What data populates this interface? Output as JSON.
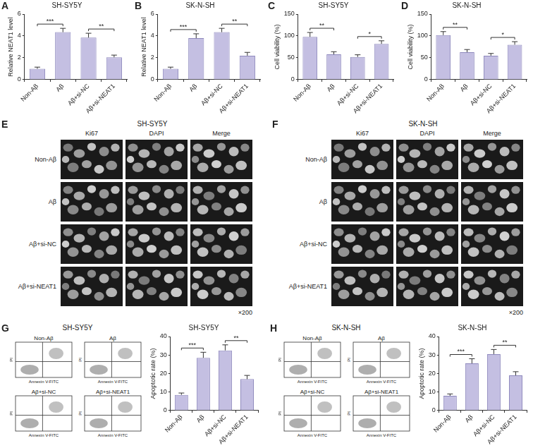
{
  "chart_data": [
    {
      "panel": "A",
      "type": "bar",
      "title": "SH-SY5Y",
      "y_label": "Relative NEAT1 level",
      "categories": [
        "Non-Aβ",
        "Aβ",
        "Aβ+si-NC",
        "Aβ+si-NEAT1"
      ],
      "values": [
        1.0,
        4.35,
        3.85,
        2.05
      ],
      "errors": [
        0.15,
        0.35,
        0.4,
        0.2
      ],
      "significance": [
        {
          "pair": [
            "Non-Aβ",
            "Aβ"
          ],
          "label": "***"
        },
        {
          "pair": [
            "Aβ+si-NC",
            "Aβ+si-NEAT1"
          ],
          "label": "**"
        }
      ],
      "color": "#c4bfe2",
      "ylim": [
        0,
        6
      ],
      "yticks": [
        0,
        2,
        4,
        6
      ],
      "grid": false
    },
    {
      "panel": "B",
      "type": "bar",
      "title": "SK-N-SH",
      "y_label": "Relative NEAT1 level",
      "categories": [
        "Non-Aβ",
        "Aβ",
        "Aβ+si-NC",
        "Aβ+si-NEAT1"
      ],
      "values": [
        1.0,
        3.8,
        4.35,
        2.2
      ],
      "errors": [
        0.15,
        0.4,
        0.35,
        0.3
      ],
      "significance": [
        {
          "pair": [
            "Non-Aβ",
            "Aβ"
          ],
          "label": "***"
        },
        {
          "pair": [
            "Aβ+si-NC",
            "Aβ+si-NEAT1"
          ],
          "label": "**"
        }
      ],
      "color": "#c4bfe2",
      "ylim": [
        0,
        6
      ],
      "yticks": [
        0,
        2,
        4,
        6
      ],
      "grid": false
    },
    {
      "panel": "C",
      "type": "bar",
      "title": "SH-SY5Y",
      "y_label": "Cell viability (%)",
      "categories": [
        "Non-Aβ",
        "Aβ",
        "Aβ+si-NC",
        "Aβ+si-NEAT1"
      ],
      "values": [
        98,
        58,
        52,
        82
      ],
      "errors": [
        10,
        6,
        5,
        7
      ],
      "significance": [
        {
          "pair": [
            "Non-Aβ",
            "Aβ"
          ],
          "label": "**"
        },
        {
          "pair": [
            "Aβ+si-NC",
            "Aβ+si-NEAT1"
          ],
          "label": "*"
        }
      ],
      "color": "#c4bfe2",
      "ylim": [
        0,
        150
      ],
      "yticks": [
        0,
        50,
        100,
        150
      ],
      "grid": false
    },
    {
      "panel": "D",
      "type": "bar",
      "title": "SK-N-SH",
      "y_label": "Cell viability (%)",
      "categories": [
        "Non-Aβ",
        "Aβ",
        "Aβ+si-NC",
        "Aβ+si-NEAT1"
      ],
      "values": [
        102,
        63,
        55,
        80
      ],
      "errors": [
        8,
        6,
        5,
        7
      ],
      "significance": [
        {
          "pair": [
            "Non-Aβ",
            "Aβ"
          ],
          "label": "**"
        },
        {
          "pair": [
            "Aβ+si-NC",
            "Aβ+si-NEAT1"
          ],
          "label": "*"
        }
      ],
      "color": "#c4bfe2",
      "ylim": [
        0,
        150
      ],
      "yticks": [
        0,
        50,
        100,
        150
      ],
      "grid": false
    },
    {
      "panel": "G",
      "type": "bar",
      "title": "SH-SY5Y",
      "y_label": "Apoptotic rate (%)",
      "categories": [
        "Non-Aβ",
        "Aβ",
        "Aβ+si-NC",
        "Aβ+si-NEAT1"
      ],
      "values": [
        8.5,
        28.5,
        32.5,
        17
      ],
      "errors": [
        1,
        3,
        3,
        2
      ],
      "significance": [
        {
          "pair": [
            "Non-Aβ",
            "Aβ"
          ],
          "label": "***"
        },
        {
          "pair": [
            "Aβ+si-NC",
            "Aβ+si-NEAT1"
          ],
          "label": "**"
        }
      ],
      "color": "#c4bfe2",
      "ylim": [
        0,
        40
      ],
      "yticks": [
        0,
        10,
        20,
        30,
        40
      ],
      "grid": false
    },
    {
      "panel": "H",
      "type": "bar",
      "title": "SK-N-SH",
      "y_label": "Apoptotic rate (%)",
      "categories": [
        "Non-Aβ",
        "Aβ",
        "Aβ+si-NC",
        "Aβ+si-NEAT1"
      ],
      "values": [
        8,
        25.5,
        30.5,
        19
      ],
      "errors": [
        1,
        2.5,
        2.5,
        2
      ],
      "significance": [
        {
          "pair": [
            "Non-Aβ",
            "Aβ"
          ],
          "label": "***"
        },
        {
          "pair": [
            "Aβ+si-NC",
            "Aβ+si-NEAT1"
          ],
          "label": "**"
        }
      ],
      "color": "#c4bfe2",
      "ylim": [
        0,
        40
      ],
      "yticks": [
        0,
        10,
        20,
        30,
        40
      ],
      "grid": false
    }
  ],
  "image_panels": [
    {
      "panel": "E",
      "title": "SH-SY5Y",
      "columns": [
        "Ki67",
        "DAPI",
        "Merge"
      ],
      "rows": [
        "Non-Aβ",
        "Aβ",
        "Aβ+si-NC",
        "Aβ+si-NEAT1"
      ],
      "magnification": "×200"
    },
    {
      "panel": "F",
      "title": "SK-N-SH",
      "columns": [
        "Ki67",
        "DAPI",
        "Merge"
      ],
      "rows": [
        "Non-Aβ",
        "Aβ",
        "Aβ+si-NC",
        "Aβ+si-NEAT1"
      ],
      "magnification": "×200"
    }
  ],
  "flow_panels": [
    {
      "panel": "G",
      "title": "SH-SY5Y",
      "plots": [
        "Non-Aβ",
        "Aβ",
        "Aβ+si-NC",
        "Aβ+si-NEAT1"
      ],
      "x_label": "Annexin V-FITC",
      "y_label": "PI"
    },
    {
      "panel": "H",
      "title": "SK-N-SH",
      "plots": [
        "Non-Aβ",
        "Aβ",
        "Aβ+si-NC",
        "Aβ+si-NEAT1"
      ],
      "x_label": "Annexin V-FITC",
      "y_label": "PI"
    }
  ]
}
